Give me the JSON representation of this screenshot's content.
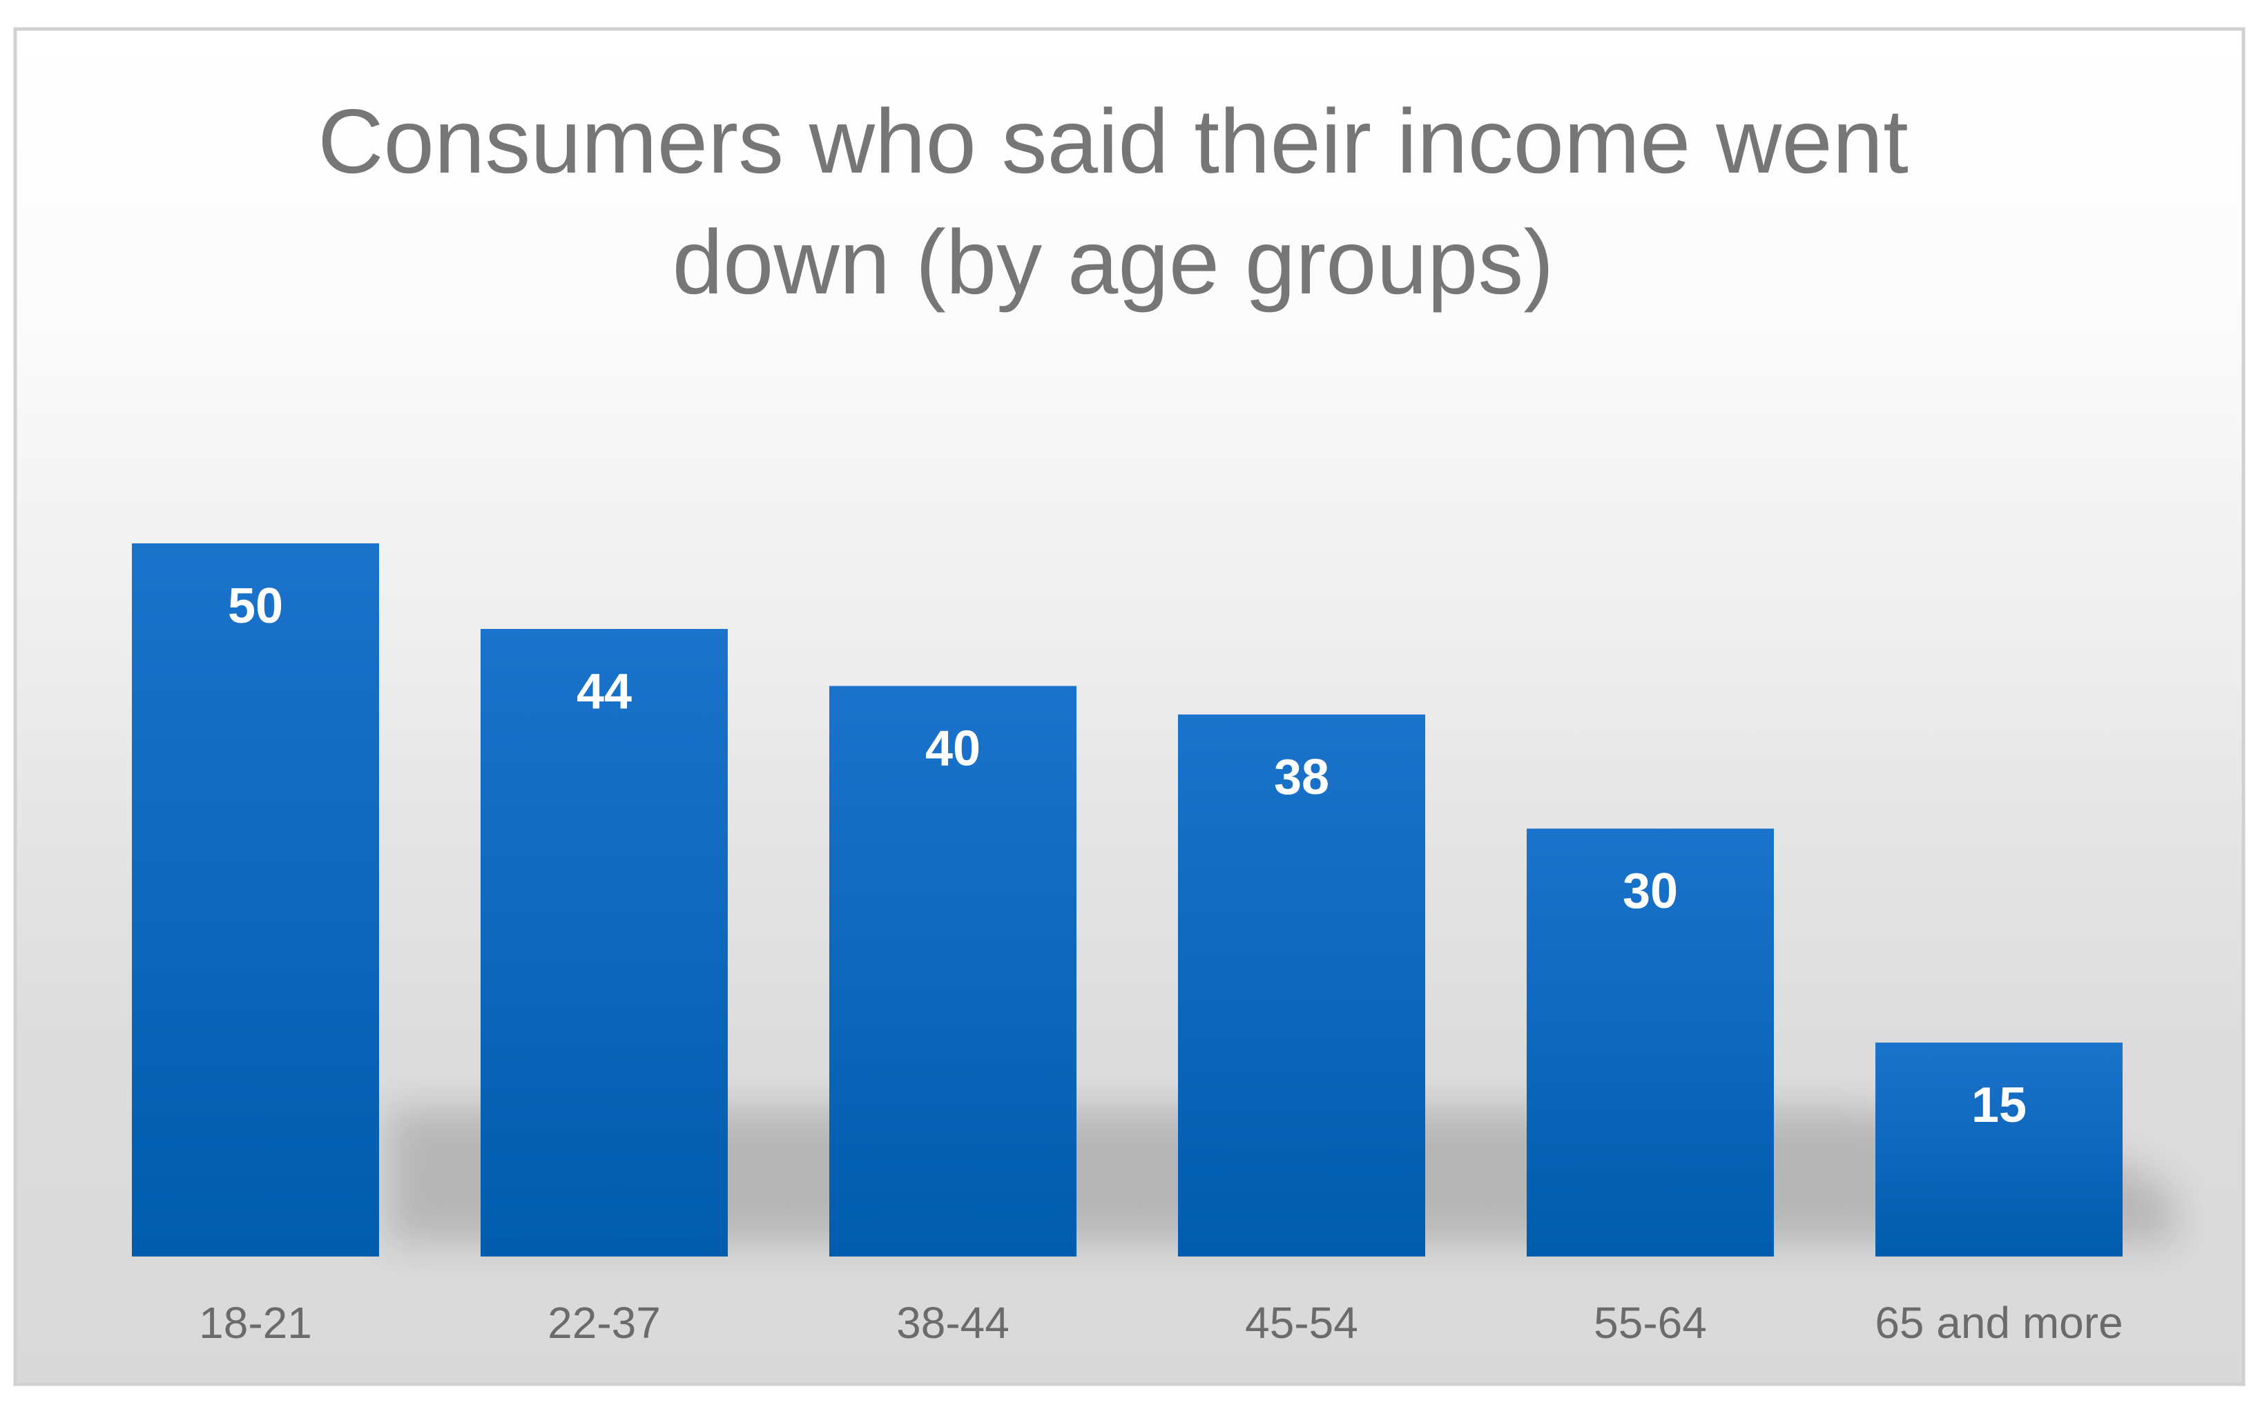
{
  "chart_data": {
    "type": "bar",
    "title": "Consumers who said their income went down  (by age groups)",
    "title_lines": [
      "Consumers who said their income went",
      "down  (by age groups)"
    ],
    "xlabel": "",
    "ylabel": "",
    "categories": [
      "18-21",
      "22-37",
      "38-44",
      "45-54",
      "55-64",
      "65 and more"
    ],
    "values": [
      50,
      44,
      40,
      38,
      30,
      15
    ],
    "ylim": [
      0,
      70
    ],
    "grid": false,
    "legend": "none",
    "data_labels": true,
    "colors": {
      "bar_top": "#1B73CB",
      "bar_bottom": "#005CAD",
      "title": "#767676",
      "tick_label": "#6B6B6B",
      "bar_label": "#FFFFFF",
      "background_top": "#FFFFFF",
      "background_bottom": "#D9D9D9",
      "border": "#D0D0D0"
    }
  }
}
